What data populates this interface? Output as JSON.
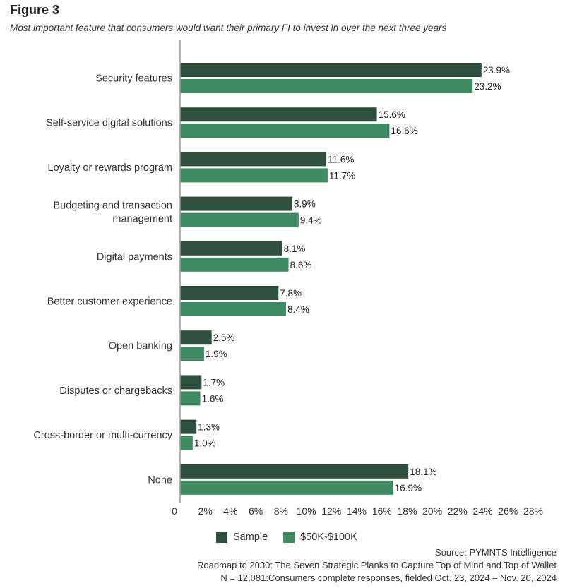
{
  "header": {
    "figure_label": "Figure 3",
    "subtitle": "Most important feature that consumers would want their primary FI to invest in over the next three years"
  },
  "colors": {
    "sample": "#2f4f3e",
    "income": "#3f8a60",
    "axis": "#999999"
  },
  "chart_data": {
    "type": "bar",
    "orientation": "horizontal",
    "categories": [
      [
        "Security features"
      ],
      [
        "Self-service digital solutions"
      ],
      [
        "Loyalty or rewards program"
      ],
      [
        "Budgeting and transaction",
        "management"
      ],
      [
        "Digital payments"
      ],
      [
        "Better customer experience"
      ],
      [
        "Open banking"
      ],
      [
        "Disputes or chargebacks"
      ],
      [
        "Cross-border or multi-currency"
      ],
      [
        "None"
      ]
    ],
    "series": [
      {
        "name": "Sample",
        "values": [
          23.9,
          15.6,
          11.6,
          8.9,
          8.1,
          7.8,
          2.5,
          1.7,
          1.3,
          18.1
        ]
      },
      {
        "name": "$50K-$100K",
        "values": [
          23.2,
          16.6,
          11.7,
          9.4,
          8.6,
          8.4,
          1.9,
          1.6,
          1.0,
          16.9
        ]
      }
    ],
    "value_suffix": "%",
    "x_ticks": [
      "0",
      "2%",
      "4%",
      "6%",
      "8%",
      "10%",
      "12%",
      "14%",
      "16%",
      "18%",
      "20%",
      "22%",
      "24%",
      "26%",
      "28%"
    ],
    "xlim": [
      0,
      28
    ],
    "legend_position": "bottom"
  },
  "footer": {
    "source": "Source: PYMNTS Intelligence",
    "report": "Roadmap to 2030: The Seven Strategic Planks to Capture Top of Mind and Top of Wallet",
    "methodology": "N = 12,081:Consumers complete responses, fielded Oct. 23, 2024 – Nov. 20, 2024"
  }
}
